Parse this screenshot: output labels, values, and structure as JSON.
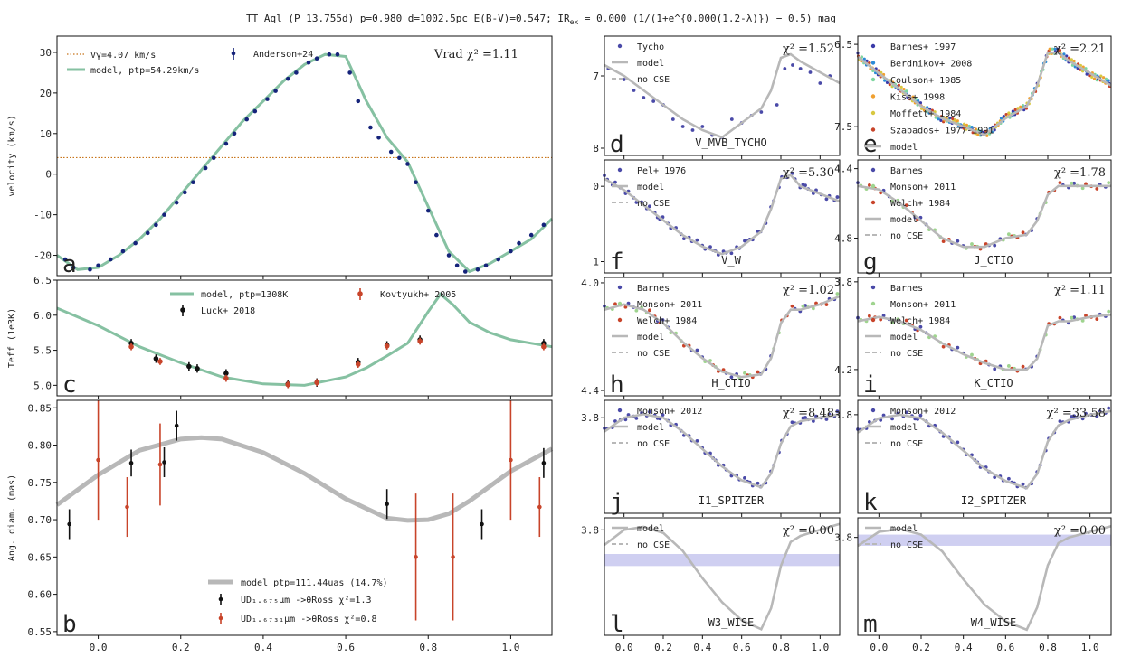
{
  "title": "TT Aql (P 13.755d) p=0.980 d=1002.5pc E(B-V)=0.547; IR",
  "title_ex": "ex",
  "title_formula": "= 0.000 (1/(1+e^{0.000(1.2-λ)}) − 0.5) mag",
  "colors": {
    "model_green": "#86c1a2",
    "model_grey": "#b8b8b8",
    "vgamma": "#c8751b",
    "navy": "#15237a",
    "red": "#c8442a",
    "blue_pts": "#4a4aa8",
    "band": "#c7c7ee"
  },
  "chart_data": [
    {
      "panel": "a",
      "type": "line",
      "ylabel": "velocity (km/s)",
      "xlim": [
        -0.1,
        1.1
      ],
      "ylim": [
        -25,
        34
      ],
      "yticks": [
        -20,
        -10,
        0,
        10,
        20,
        30
      ],
      "legend": {
        "vgamma": "Vγ=4.07 km/s",
        "model": "model, ptp=54.29km/s",
        "data": "Anderson+24",
        "chi": "Vrad  χ² =1.11"
      },
      "vgamma": 4.07,
      "model": {
        "x": [
          -0.1,
          -0.05,
          0.0,
          0.05,
          0.1,
          0.15,
          0.2,
          0.25,
          0.3,
          0.35,
          0.4,
          0.45,
          0.5,
          0.55,
          0.6,
          0.65,
          0.7,
          0.75,
          0.8,
          0.85,
          0.9,
          0.95,
          1.0,
          1.05,
          1.1
        ],
        "y": [
          -20,
          -23.5,
          -23,
          -20,
          -16,
          -11,
          -5,
          1,
          7,
          13,
          18,
          23,
          27,
          29.5,
          29,
          18,
          9,
          3,
          -8,
          -19,
          -24,
          -22,
          -19,
          -16,
          -11
        ]
      },
      "points": {
        "x": [
          -0.08,
          -0.06,
          -0.02,
          0.0,
          0.03,
          0.06,
          0.09,
          0.12,
          0.14,
          0.16,
          0.19,
          0.21,
          0.23,
          0.26,
          0.28,
          0.31,
          0.33,
          0.36,
          0.38,
          0.41,
          0.43,
          0.46,
          0.48,
          0.51,
          0.53,
          0.56,
          0.58,
          0.61,
          0.63,
          0.66,
          0.68,
          0.71,
          0.73,
          0.75,
          0.77,
          0.8,
          0.82,
          0.85,
          0.87,
          0.89,
          0.92,
          0.94,
          0.97,
          1.0,
          1.02,
          1.05,
          1.08
        ],
        "y": [
          -21,
          -23,
          -23.5,
          -22.5,
          -21,
          -19,
          -17,
          -14.5,
          -12.5,
          -10,
          -7,
          -4.5,
          -2,
          1.5,
          4,
          7.5,
          10,
          13.5,
          15.5,
          18.5,
          20.5,
          23.5,
          25,
          27.5,
          28.5,
          29.5,
          29.5,
          25,
          18,
          11.5,
          9,
          5.5,
          4,
          2.5,
          -2,
          -9,
          -15,
          -20,
          -22.5,
          -24,
          -23.5,
          -22.5,
          -21,
          -19,
          -17,
          -15,
          -12.5
        ]
      }
    },
    {
      "panel": "c",
      "type": "line",
      "ylabel": "Teff (1e3K)",
      "xlim": [
        -0.1,
        1.1
      ],
      "ylim": [
        4.85,
        6.5
      ],
      "yticks": [
        5.0,
        5.5,
        6.0,
        6.5
      ],
      "legend": {
        "model": "model, ptp=1308K",
        "luck": "Luck+ 2018",
        "kov": "Kovtyukh+ 2005"
      },
      "model": {
        "x": [
          -0.1,
          0.0,
          0.1,
          0.2,
          0.3,
          0.4,
          0.5,
          0.6,
          0.65,
          0.7,
          0.75,
          0.8,
          0.83,
          0.86,
          0.9,
          0.95,
          1.0,
          1.05,
          1.1
        ],
        "y": [
          6.1,
          5.85,
          5.55,
          5.32,
          5.12,
          5.02,
          5.0,
          5.12,
          5.25,
          5.42,
          5.6,
          6.05,
          6.3,
          6.15,
          5.9,
          5.75,
          5.65,
          5.6,
          5.55
        ]
      },
      "luck": {
        "x": [
          0.08,
          0.14,
          0.22,
          0.24,
          0.31,
          0.46,
          0.53,
          0.63,
          0.7,
          0.78,
          1.08
        ],
        "y": [
          5.6,
          5.38,
          5.27,
          5.24,
          5.17,
          5.02,
          5.04,
          5.33,
          5.57,
          5.65,
          5.6
        ]
      },
      "kov": {
        "x": [
          0.08,
          0.15,
          0.31,
          0.46,
          0.53,
          0.63,
          0.7,
          0.78,
          1.08
        ],
        "y": [
          5.55,
          5.34,
          5.1,
          5.01,
          5.04,
          5.3,
          5.56,
          5.63,
          5.55
        ]
      }
    },
    {
      "panel": "b",
      "type": "scatter",
      "ylabel": "Ang. diam. (mas)",
      "xlim": [
        -0.1,
        1.1
      ],
      "ylim": [
        0.545,
        0.86
      ],
      "yticks": [
        0.55,
        0.6,
        0.65,
        0.7,
        0.75,
        0.8,
        0.85
      ],
      "xticks": [
        0.0,
        0.2,
        0.4,
        0.6,
        0.8,
        1.0
      ],
      "legend": {
        "model": "model ptp=111.44uas (14.7%)",
        "ud1": "UD₁.₆₇₅μm ->θRoss χ²=1.3",
        "ud2": "UD₁.₆₇₃₁μm ->θRoss χ²=0.8"
      },
      "model": {
        "x": [
          -0.1,
          0.0,
          0.1,
          0.2,
          0.25,
          0.3,
          0.4,
          0.5,
          0.6,
          0.7,
          0.75,
          0.8,
          0.85,
          0.9,
          1.0,
          1.1
        ],
        "y": [
          0.72,
          0.76,
          0.793,
          0.808,
          0.81,
          0.808,
          0.79,
          0.762,
          0.728,
          0.702,
          0.699,
          0.7,
          0.708,
          0.725,
          0.765,
          0.795
        ]
      },
      "black": {
        "x": [
          -0.07,
          0.08,
          0.16,
          0.19,
          0.7,
          0.93,
          1.08
        ],
        "y": [
          0.694,
          0.776,
          0.777,
          0.826,
          0.721,
          0.694,
          0.776
        ],
        "err": [
          0.02,
          0.018,
          0.02,
          0.02,
          0.02,
          0.02,
          0.02
        ]
      },
      "red": {
        "x": [
          0.0,
          0.07,
          0.15,
          0.77,
          0.86,
          1.0,
          1.07
        ],
        "y": [
          0.78,
          0.717,
          0.774,
          0.65,
          0.65,
          0.78,
          0.717
        ],
        "err": [
          0.08,
          0.04,
          0.055,
          0.085,
          0.085,
          0.08,
          0.04
        ]
      }
    },
    {
      "panel": "d",
      "band": "V_MVB_TYCHO",
      "type": "line",
      "inverted": true,
      "ylim": [
        8.1,
        6.45
      ],
      "yticks": [
        7,
        8
      ],
      "chi": "χ² =1.52",
      "legend": [
        "Tycho",
        "model",
        "no CSE"
      ],
      "model": {
        "x": [
          -0.1,
          0.0,
          0.1,
          0.2,
          0.3,
          0.4,
          0.5,
          0.6,
          0.7,
          0.75,
          0.8,
          0.85,
          0.9,
          1.0,
          1.1
        ],
        "y": [
          6.85,
          7.0,
          7.2,
          7.4,
          7.6,
          7.75,
          7.85,
          7.65,
          7.45,
          7.2,
          6.75,
          6.7,
          6.8,
          6.95,
          7.1
        ]
      },
      "points": {
        "x": [
          -0.08,
          0.0,
          0.05,
          0.1,
          0.15,
          0.2,
          0.25,
          0.3,
          0.35,
          0.4,
          0.45,
          0.5,
          0.55,
          0.6,
          0.65,
          0.7,
          0.78,
          0.82,
          0.86,
          0.9,
          0.95,
          1.0,
          1.05
        ],
        "y": [
          6.9,
          7.05,
          7.2,
          7.3,
          7.35,
          7.4,
          7.6,
          7.7,
          7.75,
          7.7,
          7.82,
          7.85,
          7.6,
          7.65,
          7.55,
          7.5,
          7.4,
          6.9,
          6.85,
          6.9,
          6.95,
          7.1,
          7.0
        ]
      }
    },
    {
      "panel": "e",
      "band": "",
      "type": "line",
      "inverted": true,
      "ylim": [
        7.85,
        6.4
      ],
      "yticks": [
        6.5,
        7.5
      ],
      "chi": "χ² =2.21",
      "legend": [
        "Barnes+ 1997",
        "Berdnikov+ 2008",
        "Coulson+ 1985",
        "Kiss+ 1998",
        "Moffett+ 1984",
        "Szabados+ 1977-1991",
        "model"
      ],
      "model": {
        "x": [
          -0.1,
          0.0,
          0.1,
          0.2,
          0.3,
          0.4,
          0.5,
          0.6,
          0.7,
          0.75,
          0.8,
          0.85,
          0.9,
          1.0,
          1.1
        ],
        "y": [
          6.65,
          6.85,
          7.05,
          7.25,
          7.4,
          7.5,
          7.6,
          7.4,
          7.25,
          7.0,
          6.6,
          6.6,
          6.7,
          6.85,
          7.0
        ]
      }
    },
    {
      "panel": "f",
      "band": "V_W",
      "type": "line",
      "inverted": true,
      "ylim": [
        1.15,
        -0.35
      ],
      "yticks": [
        0,
        1
      ],
      "chi": "χ² =5.30",
      "legend": [
        "Pel+ 1976",
        "model",
        "no CSE"
      ],
      "model": {
        "x": [
          -0.1,
          0.0,
          0.1,
          0.2,
          0.3,
          0.4,
          0.5,
          0.6,
          0.7,
          0.75,
          0.8,
          0.85,
          0.9,
          1.0,
          1.1
        ],
        "y": [
          -0.1,
          0.05,
          0.25,
          0.45,
          0.65,
          0.8,
          0.9,
          0.8,
          0.6,
          0.3,
          -0.1,
          -0.15,
          0.0,
          0.1,
          0.2
        ]
      }
    },
    {
      "panel": "g",
      "band": "J_CTIO",
      "type": "line",
      "inverted": true,
      "ylim": [
        5.0,
        4.35
      ],
      "yticks": [
        4.4,
        4.8
      ],
      "chi": "χ² =1.78",
      "legend": [
        "Barnes",
        "Monson+ 2011",
        "Welch+ 1984",
        "model",
        "no CSE"
      ],
      "model": {
        "x": [
          -0.1,
          0.0,
          0.1,
          0.2,
          0.3,
          0.4,
          0.5,
          0.6,
          0.7,
          0.75,
          0.8,
          0.85,
          0.9,
          1.0,
          1.1
        ],
        "y": [
          4.5,
          4.52,
          4.6,
          4.7,
          4.8,
          4.85,
          4.85,
          4.8,
          4.78,
          4.7,
          4.55,
          4.5,
          4.5,
          4.5,
          4.5
        ]
      }
    },
    {
      "panel": "h",
      "band": "H_CTIO",
      "type": "line",
      "inverted": true,
      "ylim": [
        4.42,
        3.98
      ],
      "yticks": [
        4.0,
        4.4
      ],
      "chi": "χ² =1.02",
      "legend": [
        "Barnes",
        "Monson+ 2011",
        "Welch+ 1984",
        "model",
        "no CSE"
      ],
      "model": {
        "x": [
          -0.1,
          0.0,
          0.1,
          0.2,
          0.3,
          0.4,
          0.5,
          0.6,
          0.7,
          0.75,
          0.8,
          0.85,
          0.9,
          1.0,
          1.1
        ],
        "y": [
          4.1,
          4.08,
          4.1,
          4.15,
          4.22,
          4.28,
          4.33,
          4.35,
          4.34,
          4.28,
          4.15,
          4.1,
          4.1,
          4.08,
          4.05
        ]
      }
    },
    {
      "panel": "i",
      "band": "K_CTIO",
      "type": "line",
      "inverted": true,
      "ylim": [
        4.32,
        3.78
      ],
      "yticks": [
        3.8,
        4.2
      ],
      "chi": "χ² =1.11",
      "legend": [
        "Barnes",
        "Monson+ 2011",
        "Welch+ 1984",
        "model",
        "no CSE"
      ],
      "model": {
        "x": [
          -0.1,
          0.0,
          0.1,
          0.2,
          0.3,
          0.4,
          0.5,
          0.6,
          0.7,
          0.75,
          0.8,
          0.85,
          0.9,
          1.0,
          1.1
        ],
        "y": [
          3.98,
          3.96,
          3.98,
          4.02,
          4.08,
          4.13,
          4.17,
          4.2,
          4.2,
          4.15,
          4.0,
          3.98,
          3.98,
          3.96,
          3.95
        ]
      }
    },
    {
      "panel": "j",
      "band": "I1_SPITZER",
      "type": "line",
      "inverted": true,
      "ylim": [
        4.35,
        3.7
      ],
      "yticks": [
        3.8
      ],
      "chi": "χ² =8.48",
      "legend": [
        "Monson+ 2012",
        "model",
        "no CSE"
      ],
      "model": {
        "x": [
          -0.1,
          0.0,
          0.1,
          0.2,
          0.3,
          0.4,
          0.5,
          0.6,
          0.7,
          0.75,
          0.8,
          0.85,
          0.9,
          1.0,
          1.1
        ],
        "y": [
          3.88,
          3.8,
          3.78,
          3.8,
          3.88,
          3.98,
          4.08,
          4.16,
          4.2,
          4.12,
          3.95,
          3.85,
          3.82,
          3.8,
          3.78
        ]
      }
    },
    {
      "panel": "k",
      "band": "I2_SPITZER",
      "type": "line",
      "inverted": true,
      "ylim": [
        4.35,
        3.72
      ],
      "yticks": [
        3.8
      ],
      "chi": "χ² =33.58",
      "legend": [
        "Monson+ 2012",
        "model",
        "no CSE"
      ],
      "model": {
        "x": [
          -0.1,
          0.0,
          0.1,
          0.2,
          0.3,
          0.4,
          0.5,
          0.6,
          0.7,
          0.75,
          0.8,
          0.85,
          0.9,
          1.0,
          1.1
        ],
        "y": [
          3.9,
          3.82,
          3.8,
          3.82,
          3.9,
          4.0,
          4.1,
          4.17,
          4.21,
          4.13,
          3.95,
          3.86,
          3.83,
          3.8,
          3.78
        ]
      }
    },
    {
      "panel": "l",
      "band": "W3_WISE",
      "type": "line",
      "inverted": true,
      "ylim": [
        4.15,
        3.76
      ],
      "yticks": [
        3.8
      ],
      "chi": "χ² =0.00",
      "legend": [
        "model",
        "no CSE"
      ],
      "band_range": [
        3.88,
        3.92
      ],
      "model": {
        "x": [
          -0.1,
          0.0,
          0.1,
          0.2,
          0.3,
          0.4,
          0.5,
          0.6,
          0.7,
          0.75,
          0.8,
          0.85,
          0.9,
          1.0,
          1.1
        ],
        "y": [
          3.85,
          3.8,
          3.79,
          3.81,
          3.87,
          3.96,
          4.04,
          4.1,
          4.13,
          4.06,
          3.92,
          3.84,
          3.82,
          3.8,
          3.78
        ]
      }
    },
    {
      "panel": "m",
      "band": "W4_WISE",
      "type": "line",
      "inverted": true,
      "ylim": [
        4.15,
        3.73
      ],
      "yticks": [
        3.8
      ],
      "chi": "χ² =0.00",
      "legend": [
        "model",
        "no CSE"
      ],
      "band_range": [
        3.79,
        3.83
      ],
      "model": {
        "x": [
          -0.1,
          0.0,
          0.1,
          0.2,
          0.3,
          0.4,
          0.5,
          0.6,
          0.7,
          0.75,
          0.8,
          0.85,
          0.9,
          1.0,
          1.1
        ],
        "y": [
          3.83,
          3.78,
          3.77,
          3.79,
          3.85,
          3.95,
          4.04,
          4.1,
          4.13,
          4.05,
          3.9,
          3.82,
          3.8,
          3.78,
          3.76
        ]
      }
    }
  ],
  "xticks_small": [
    "0.0",
    "0.2",
    "0.4",
    "0.6",
    "0.8",
    "1.0"
  ]
}
